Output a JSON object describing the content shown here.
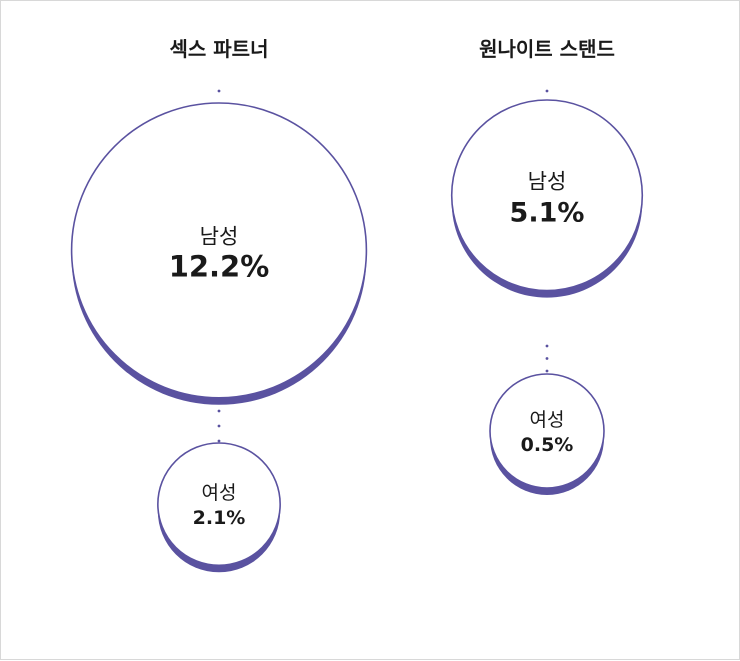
{
  "colors": {
    "accent": "#5a52a0",
    "text": "#1a1a1a",
    "background": "#ffffff",
    "border": "#d8d8d8"
  },
  "chart_data": {
    "type": "bubble",
    "title": "",
    "unit": "%",
    "groups": [
      {
        "name": "섹스 파트너",
        "items": [
          {
            "category": "남성",
            "value": 12.2,
            "label": "12.2%"
          },
          {
            "category": "여성",
            "value": 2.1,
            "label": "2.1%"
          }
        ]
      },
      {
        "name": "원나이트 스탠드",
        "items": [
          {
            "category": "남성",
            "value": 5.1,
            "label": "5.1%"
          },
          {
            "category": "여성",
            "value": 0.5,
            "label": "0.5%"
          }
        ]
      }
    ]
  }
}
